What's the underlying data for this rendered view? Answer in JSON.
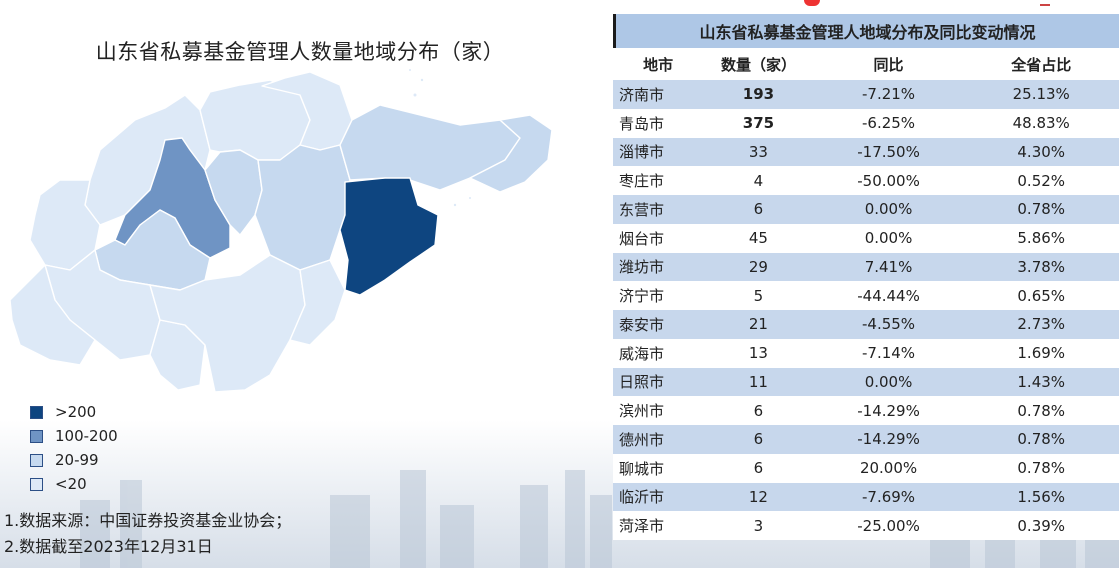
{
  "map": {
    "title": "山东省私募基金管理人数量地域分布（家）",
    "legend": [
      {
        "label": ">200",
        "color": "#0e4580"
      },
      {
        "label": "100-200",
        "color": "#6f94c4"
      },
      {
        "label": "20-99",
        "color": "#c6d9ef"
      },
      {
        "label": "<20",
        "color": "#dde9f7"
      }
    ],
    "notes": [
      "1.数据来源：中国证券投资基金业协会；",
      "2.数据截至2023年12月31日"
    ]
  },
  "table": {
    "title": "山东省私募基金管理人地域分布及同比变动情况",
    "headers": [
      "地市",
      "数量（家）",
      "同比",
      "全省占比"
    ]
  },
  "chart_data": [
    {
      "type": "heatmap",
      "title": "山东省私募基金管理人数量地域分布（家）",
      "legend": [
        ">200",
        "100-200",
        "20-99",
        "<20"
      ],
      "legend_position": "bottom-left"
    },
    {
      "type": "table",
      "title": "山东省私募基金管理人地域分布及同比变动情况",
      "columns": [
        "地市",
        "数量（家）",
        "同比",
        "全省占比"
      ],
      "rows": [
        [
          "济南市",
          "193",
          "-7.21%",
          "25.13%"
        ],
        [
          "青岛市",
          "375",
          "-6.25%",
          "48.83%"
        ],
        [
          "淄博市",
          "33",
          "-17.50%",
          "4.30%"
        ],
        [
          "枣庄市",
          "4",
          "-50.00%",
          "0.52%"
        ],
        [
          "东营市",
          "6",
          "0.00%",
          "0.78%"
        ],
        [
          "烟台市",
          "45",
          "0.00%",
          "5.86%"
        ],
        [
          "潍坊市",
          "29",
          "7.41%",
          "3.78%"
        ],
        [
          "济宁市",
          "5",
          "-44.44%",
          "0.65%"
        ],
        [
          "泰安市",
          "21",
          "-4.55%",
          "2.73%"
        ],
        [
          "威海市",
          "13",
          "-7.14%",
          "1.69%"
        ],
        [
          "日照市",
          "11",
          "0.00%",
          "1.43%"
        ],
        [
          "滨州市",
          "6",
          "-14.29%",
          "0.78%"
        ],
        [
          "德州市",
          "6",
          "-14.29%",
          "0.78%"
        ],
        [
          "聊城市",
          "6",
          "20.00%",
          "0.78%"
        ],
        [
          "临沂市",
          "12",
          "-7.69%",
          "1.56%"
        ],
        [
          "菏泽市",
          "3",
          "-25.00%",
          "0.39%"
        ]
      ],
      "bold_counts": [
        "济南市",
        "青岛市"
      ]
    }
  ]
}
